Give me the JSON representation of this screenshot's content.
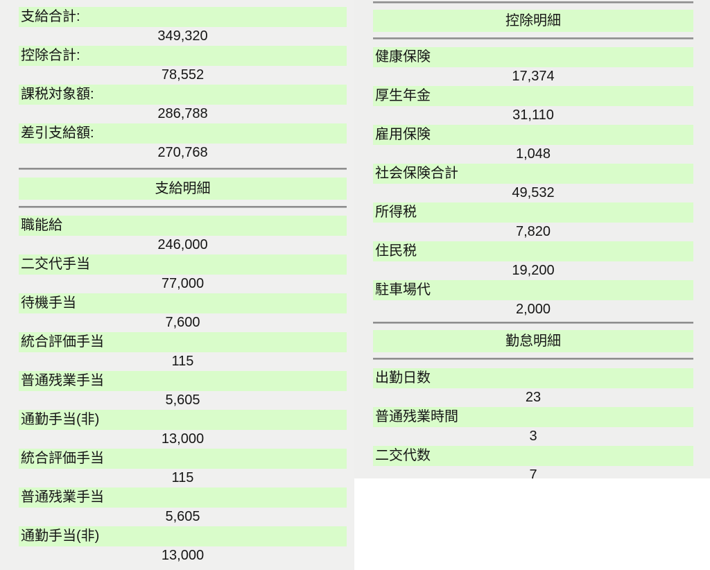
{
  "colors": {
    "row_label_bg": "#d9fcca",
    "panel_bg": "#f0f0ef",
    "page_bg": "#ffffff",
    "divider": "#8d8d8d",
    "text": "#151515"
  },
  "left": {
    "summary": [
      {
        "label": "支給合計:",
        "value": "349,320"
      },
      {
        "label": "控除合計:",
        "value": "78,552"
      },
      {
        "label": "課税対象額:",
        "value": "286,788"
      },
      {
        "label": "差引支給額:",
        "value": "270,768"
      }
    ],
    "payments_header": "支給明細",
    "payments": [
      {
        "label": "職能給",
        "value": "246,000"
      },
      {
        "label": "二交代手当",
        "value": "77,000"
      },
      {
        "label": "待機手当",
        "value": "7,600"
      },
      {
        "label": "統合評価手当",
        "value": "115"
      },
      {
        "label": "普通残業手当",
        "value": "5,605"
      },
      {
        "label": "通勤手当(非)",
        "value": "13,000"
      },
      {
        "label": "統合評価手当",
        "value": "115"
      },
      {
        "label": "普通残業手当",
        "value": "5,605"
      },
      {
        "label": "通勤手当(非)",
        "value": "13,000"
      }
    ]
  },
  "right": {
    "deductions_header": "控除明細",
    "deductions": [
      {
        "label": "健康保険",
        "value": "17,374"
      },
      {
        "label": "厚生年金",
        "value": "31,110"
      },
      {
        "label": "雇用保険",
        "value": "1,048"
      },
      {
        "label": "社会保険合計",
        "value": "49,532"
      },
      {
        "label": "所得税",
        "value": "7,820"
      },
      {
        "label": "住民税",
        "value": "19,200"
      },
      {
        "label": "駐車場代",
        "value": "2,000"
      }
    ],
    "attendance_header": "勤怠明細",
    "attendance": [
      {
        "label": "出勤日数",
        "value": "23"
      },
      {
        "label": "普通残業時間",
        "value": "3"
      },
      {
        "label": "二交代数",
        "value": "7"
      }
    ]
  }
}
